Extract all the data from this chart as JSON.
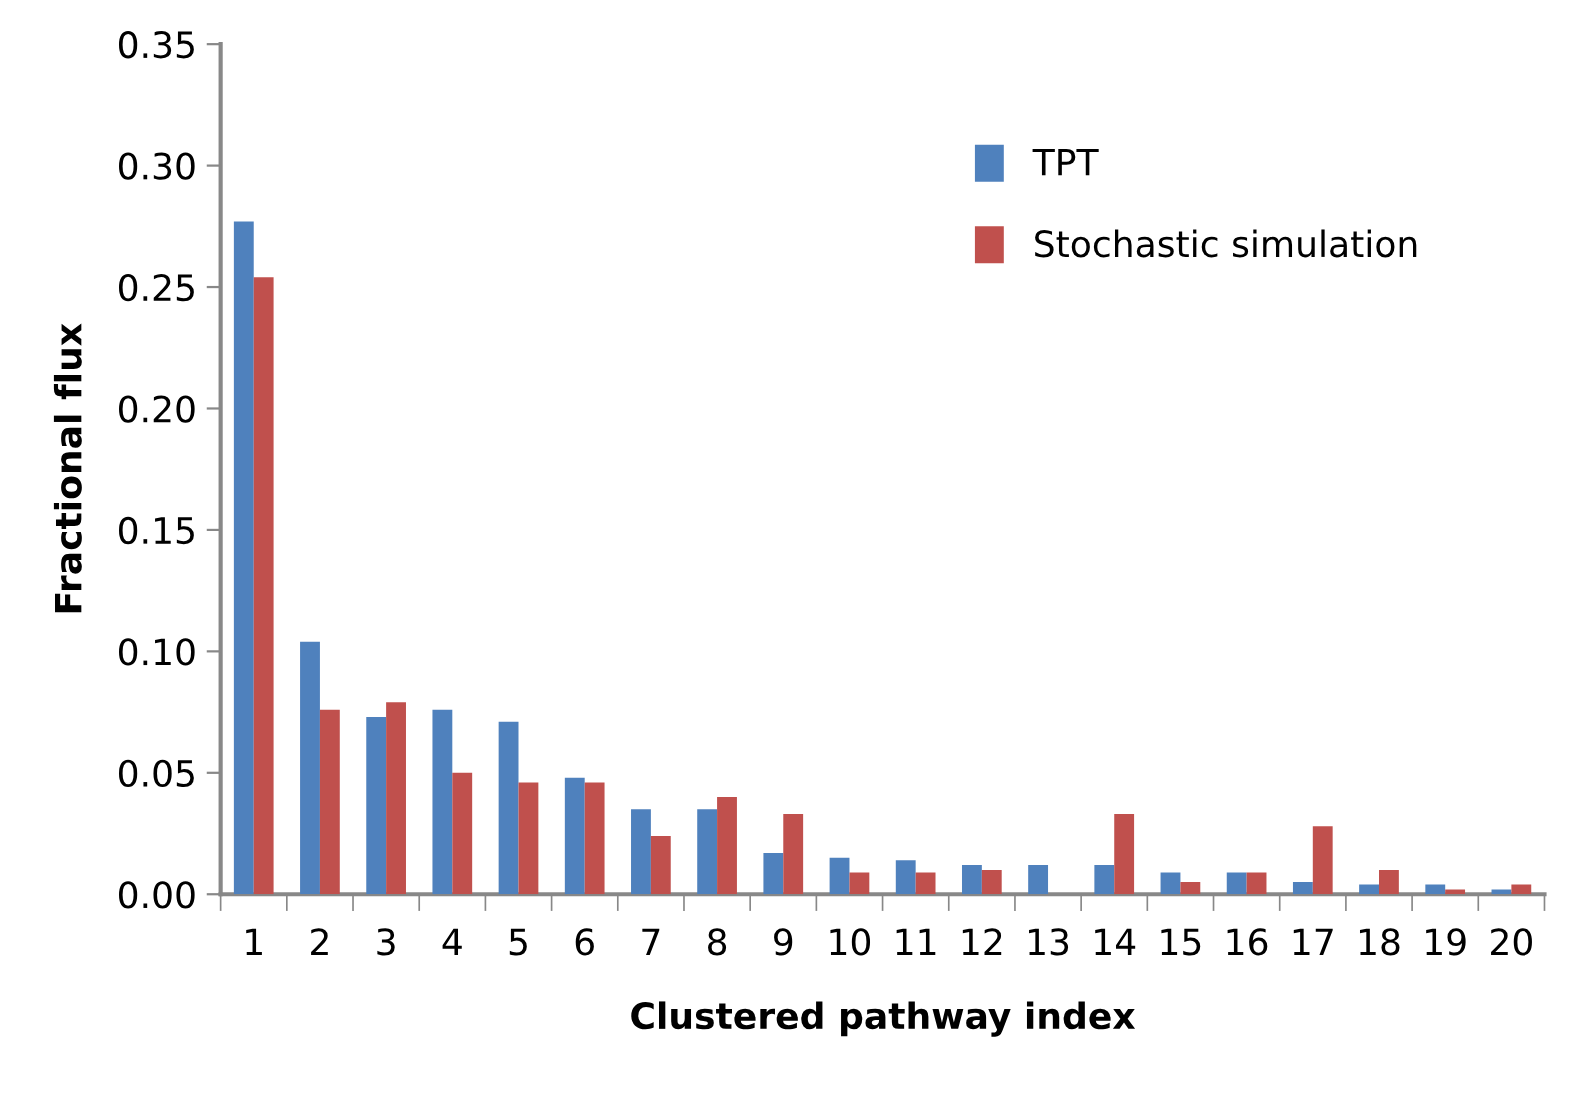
{
  "chart_data": {
    "type": "bar",
    "xlabel": "Clustered pathway index",
    "ylabel": "Fractional flux",
    "categories": [
      "1",
      "2",
      "3",
      "4",
      "5",
      "6",
      "7",
      "8",
      "9",
      "10",
      "11",
      "12",
      "13",
      "14",
      "15",
      "16",
      "17",
      "18",
      "19",
      "20"
    ],
    "series": [
      {
        "name": "TPT",
        "color": "#4f81bd",
        "values": [
          0.277,
          0.104,
          0.073,
          0.076,
          0.071,
          0.048,
          0.035,
          0.035,
          0.017,
          0.015,
          0.014,
          0.012,
          0.012,
          0.012,
          0.009,
          0.009,
          0.005,
          0.004,
          0.004,
          0.002
        ]
      },
      {
        "name": "Stochastic simulation",
        "color": "#c0504d",
        "values": [
          0.254,
          0.076,
          0.079,
          0.05,
          0.046,
          0.046,
          0.024,
          0.04,
          0.033,
          0.009,
          0.009,
          0.01,
          0,
          0.033,
          0.005,
          0.009,
          0.028,
          0.01,
          0.002,
          0.004
        ]
      }
    ],
    "ylim": [
      0,
      0.35
    ],
    "yticks": [
      {
        "value": 0,
        "label": "0.00"
      },
      {
        "value": 0.05,
        "label": "0.05"
      },
      {
        "value": 0.1,
        "label": "0.10"
      },
      {
        "value": 0.15,
        "label": "0.15"
      },
      {
        "value": 0.2,
        "label": "0.20"
      },
      {
        "value": 0.25,
        "label": "0.25"
      },
      {
        "value": 0.3,
        "label": "0.30"
      },
      {
        "value": 0.35,
        "label": "0.35"
      }
    ],
    "grid": false,
    "legend": "top right"
  }
}
